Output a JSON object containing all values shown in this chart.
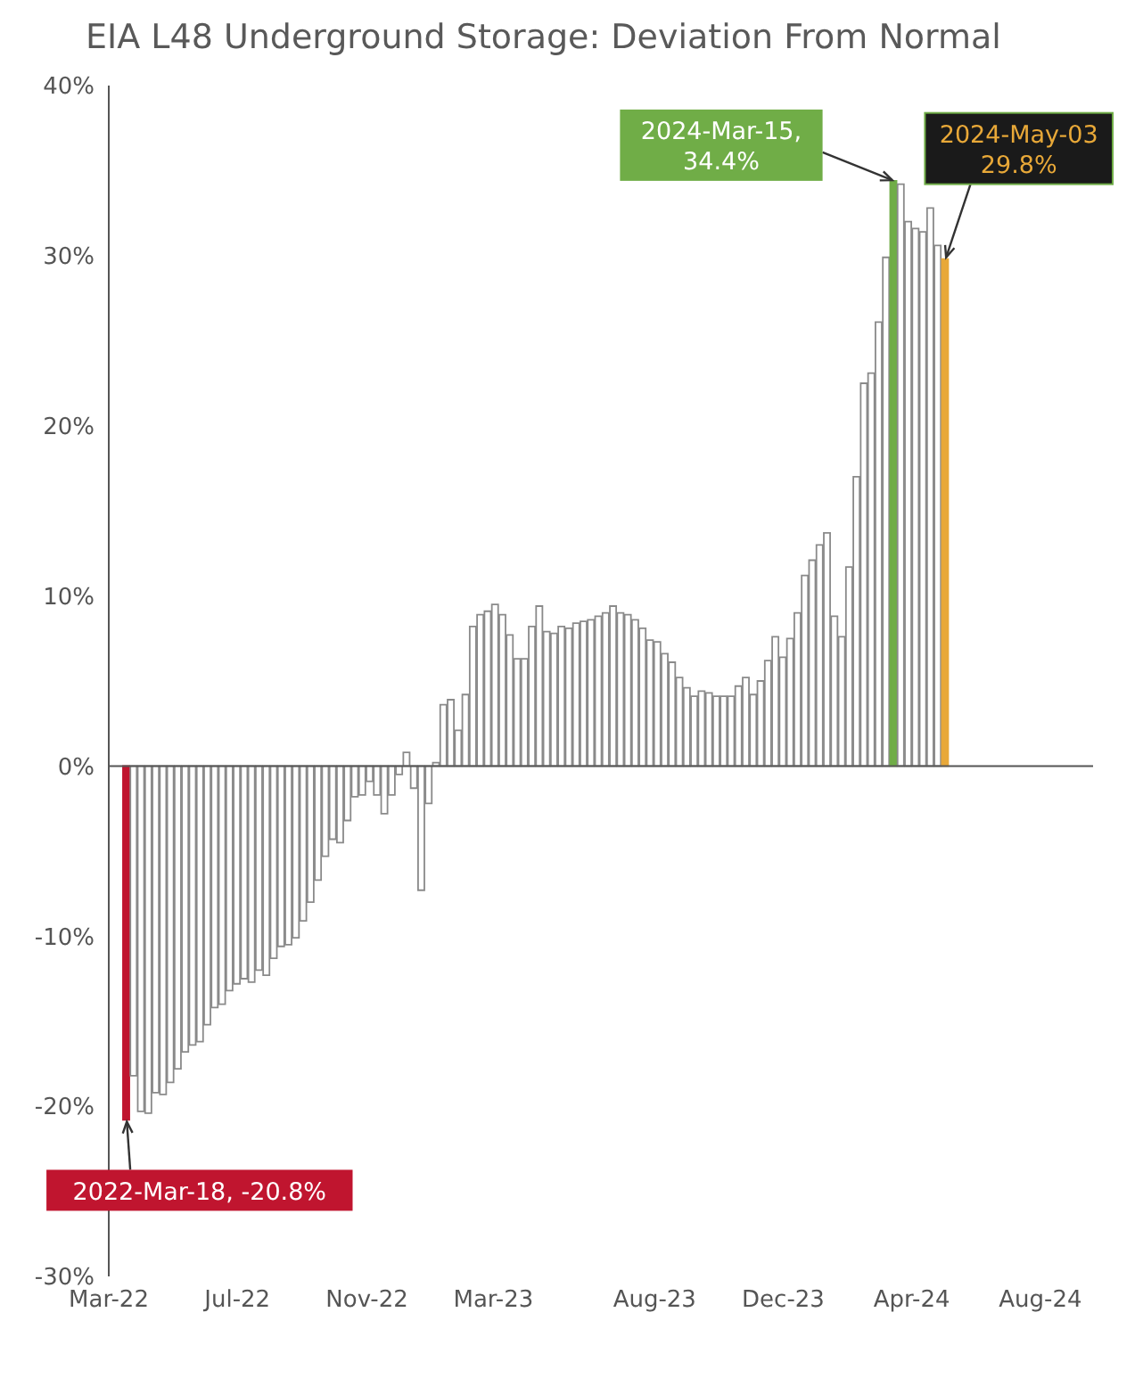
{
  "chart_data": {
    "type": "bar",
    "title": "EIA L48 Underground Storage: Deviation From Normal",
    "x": [
      "2022-03-18",
      "2022-03-25",
      "2022-04-01",
      "2022-04-08",
      "2022-04-15",
      "2022-04-22",
      "2022-04-29",
      "2022-05-06",
      "2022-05-13",
      "2022-05-20",
      "2022-05-27",
      "2022-06-03",
      "2022-06-10",
      "2022-06-17",
      "2022-06-24",
      "2022-07-01",
      "2022-07-08",
      "2022-07-15",
      "2022-07-22",
      "2022-07-29",
      "2022-08-05",
      "2022-08-12",
      "2022-08-19",
      "2022-08-26",
      "2022-09-02",
      "2022-09-09",
      "2022-09-16",
      "2022-09-23",
      "2022-09-30",
      "2022-10-07",
      "2022-10-14",
      "2022-10-21",
      "2022-10-28",
      "2022-11-04",
      "2022-11-11",
      "2022-11-18",
      "2022-11-25",
      "2022-12-02",
      "2022-12-09",
      "2022-12-16",
      "2022-12-23",
      "2022-12-30",
      "2023-01-06",
      "2023-01-13",
      "2023-01-20",
      "2023-01-27",
      "2023-02-03",
      "2023-02-10",
      "2023-02-17",
      "2023-02-24",
      "2023-03-03",
      "2023-03-10",
      "2023-03-17",
      "2023-03-24",
      "2023-03-31",
      "2023-04-07",
      "2023-04-14",
      "2023-04-21",
      "2023-04-28",
      "2023-05-05",
      "2023-05-12",
      "2023-05-19",
      "2023-05-26",
      "2023-06-02",
      "2023-06-09",
      "2023-06-16",
      "2023-06-23",
      "2023-06-30",
      "2023-07-07",
      "2023-07-14",
      "2023-07-21",
      "2023-07-28",
      "2023-08-04",
      "2023-08-11",
      "2023-08-18",
      "2023-08-25",
      "2023-09-01",
      "2023-09-08",
      "2023-09-15",
      "2023-09-22",
      "2023-09-29",
      "2023-10-06",
      "2023-10-13",
      "2023-10-20",
      "2023-10-27",
      "2023-11-03",
      "2023-11-10",
      "2023-11-17",
      "2023-11-24",
      "2023-12-01",
      "2023-12-08",
      "2023-12-15",
      "2023-12-22",
      "2023-12-29",
      "2024-01-05",
      "2024-01-12",
      "2024-01-19",
      "2024-01-26",
      "2024-02-02",
      "2024-02-09",
      "2024-02-16",
      "2024-02-23",
      "2024-03-01",
      "2024-03-08",
      "2024-03-15",
      "2024-03-22",
      "2024-03-29",
      "2024-04-05",
      "2024-04-12",
      "2024-04-19",
      "2024-04-26",
      "2024-05-03"
    ],
    "values": [
      -20.8,
      -18.2,
      -20.3,
      -20.4,
      -19.2,
      -19.3,
      -18.6,
      -17.8,
      -16.8,
      -16.4,
      -16.2,
      -15.2,
      -14.2,
      -14.0,
      -13.2,
      -12.8,
      -12.5,
      -12.7,
      -12.0,
      -12.3,
      -11.3,
      -10.6,
      -10.5,
      -10.1,
      -9.1,
      -8.0,
      -6.7,
      -5.3,
      -4.3,
      -4.5,
      -3.2,
      -1.8,
      -1.7,
      -0.9,
      -1.7,
      -2.8,
      -1.7,
      -0.5,
      0.8,
      -1.3,
      -7.3,
      -2.2,
      0.2,
      3.6,
      3.9,
      2.1,
      4.2,
      8.2,
      8.9,
      9.1,
      9.5,
      8.9,
      7.7,
      6.3,
      6.3,
      8.2,
      9.4,
      7.9,
      7.8,
      8.2,
      8.1,
      8.4,
      8.5,
      8.6,
      8.8,
      9.0,
      9.4,
      9.0,
      8.9,
      8.6,
      8.1,
      7.4,
      7.3,
      6.6,
      6.1,
      5.2,
      4.6,
      4.1,
      4.4,
      4.3,
      4.1,
      4.1,
      4.1,
      4.7,
      5.2,
      4.2,
      5.0,
      6.2,
      7.6,
      6.4,
      7.5,
      9.0,
      11.2,
      12.1,
      13.0,
      13.7,
      8.8,
      7.6,
      11.7,
      17.0,
      22.5,
      23.1,
      26.1,
      29.9,
      34.4,
      34.2,
      32.0,
      31.6,
      31.4,
      32.8,
      30.6,
      29.8
    ],
    "colors": [
      "#c0152f",
      "#ffffff",
      "#ffffff",
      "#ffffff",
      "#ffffff",
      "#ffffff",
      "#ffffff",
      "#ffffff",
      "#ffffff",
      "#ffffff",
      "#ffffff",
      "#ffffff",
      "#ffffff",
      "#ffffff",
      "#ffffff",
      "#ffffff",
      "#ffffff",
      "#ffffff",
      "#ffffff",
      "#ffffff",
      "#ffffff",
      "#ffffff",
      "#ffffff",
      "#ffffff",
      "#ffffff",
      "#ffffff",
      "#ffffff",
      "#ffffff",
      "#ffffff",
      "#ffffff",
      "#ffffff",
      "#ffffff",
      "#ffffff",
      "#ffffff",
      "#ffffff",
      "#ffffff",
      "#ffffff",
      "#ffffff",
      "#ffffff",
      "#ffffff",
      "#ffffff",
      "#ffffff",
      "#ffffff",
      "#ffffff",
      "#ffffff",
      "#ffffff",
      "#ffffff",
      "#ffffff",
      "#ffffff",
      "#ffffff",
      "#ffffff",
      "#ffffff",
      "#ffffff",
      "#ffffff",
      "#ffffff",
      "#ffffff",
      "#ffffff",
      "#ffffff",
      "#ffffff",
      "#ffffff",
      "#ffffff",
      "#ffffff",
      "#ffffff",
      "#ffffff",
      "#ffffff",
      "#ffffff",
      "#ffffff",
      "#ffffff",
      "#ffffff",
      "#ffffff",
      "#ffffff",
      "#ffffff",
      "#ffffff",
      "#ffffff",
      "#ffffff",
      "#ffffff",
      "#ffffff",
      "#ffffff",
      "#ffffff",
      "#ffffff",
      "#ffffff",
      "#ffffff",
      "#ffffff",
      "#ffffff",
      "#ffffff",
      "#ffffff",
      "#ffffff",
      "#ffffff",
      "#ffffff",
      "#ffffff",
      "#ffffff",
      "#ffffff",
      "#ffffff",
      "#ffffff",
      "#ffffff",
      "#ffffff",
      "#ffffff",
      "#ffffff",
      "#ffffff",
      "#ffffff",
      "#ffffff",
      "#ffffff",
      "#ffffff",
      "#ffffff",
      "#70ad47",
      "#ffffff",
      "#ffffff",
      "#ffffff",
      "#ffffff",
      "#ffffff",
      "#ffffff",
      "#e8a838"
    ],
    "xlim": [
      "2022-03-01",
      "2024-09-20"
    ],
    "xticks": [
      {
        "value": "2022-03-01",
        "label": "Mar-22"
      },
      {
        "value": "2022-07-01",
        "label": "Jul-22"
      },
      {
        "value": "2022-11-01",
        "label": "Nov-22"
      },
      {
        "value": "2023-03-01",
        "label": "Mar-23"
      },
      {
        "value": "2023-08-01",
        "label": "Aug-23"
      },
      {
        "value": "2023-12-01",
        "label": "Dec-23"
      },
      {
        "value": "2024-04-01",
        "label": "Apr-24"
      },
      {
        "value": "2024-08-01",
        "label": "Aug-24"
      }
    ],
    "ylim": [
      -30,
      40
    ],
    "yticks": [
      {
        "value": -30,
        "label": "-30%"
      },
      {
        "value": -20,
        "label": "-20%"
      },
      {
        "value": -10,
        "label": "-10%"
      },
      {
        "value": 0,
        "label": "0%"
      },
      {
        "value": 10,
        "label": "10%"
      },
      {
        "value": 20,
        "label": "20%"
      },
      {
        "value": 30,
        "label": "30%"
      },
      {
        "value": 40,
        "label": "40%"
      }
    ],
    "annotations": [
      {
        "text": "2022-Mar-18, -20.8%",
        "x": "2022-03-18",
        "y": -20.8
      },
      {
        "text": "2024-Mar-15, 34.4%",
        "x": "2024-03-15",
        "y": 34.4
      },
      {
        "text": "2024-May-03 29.8%",
        "x": "2024-05-03",
        "y": 29.8
      }
    ],
    "legend": false
  }
}
